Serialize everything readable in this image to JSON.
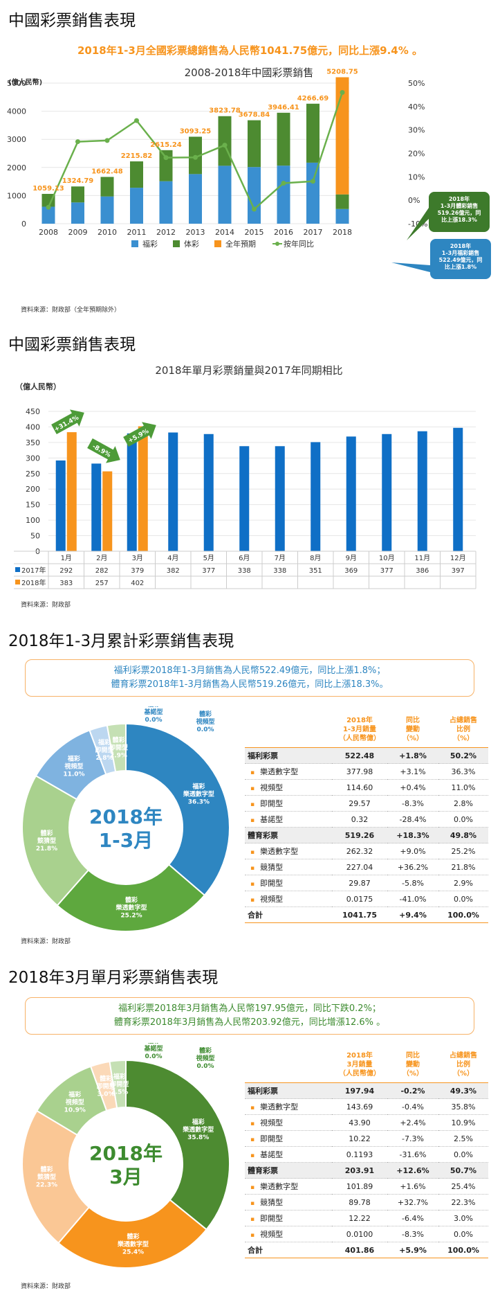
{
  "section1": {
    "title": "中國彩票銷售表現",
    "headline": "2018年1-3月全國彩票總銷售為人民幣1041.75億元，同比上漲9.4% 。",
    "source": "資料來源：財政部（全年預期除外）",
    "callout_green": [
      "2018年",
      "1-3月體彩銷售",
      "519.26億元，同",
      "比上漲18.3%"
    ],
    "callout_blue": [
      "2018年",
      "1-3月福彩銷售",
      "522.49億元，同",
      "比上漲1.8%"
    ]
  },
  "section2": {
    "title": "中國彩票銷售表現",
    "source": "資料來源：財政部",
    "arrow_labels": [
      "+31.4%",
      "-8.9%",
      "+5.9%"
    ]
  },
  "section3": {
    "title": "2018年1-3月累計彩票銷售表現",
    "summary": [
      "福利彩票2018年1-3月銷售為人民幣522.49億元，同比上漲1.8%；",
      "體育彩票2018年1-3月銷售為人民幣519.26億元，同比上漲18.3%。"
    ],
    "donut_center": [
      "2018年",
      "1-3月"
    ],
    "source": "資料來源：財政部",
    "table_headers": [
      "2018年\n1-3月銷量\n（人民幣億）",
      "同比\n變動\n（%）",
      "占總銷售\n比例\n（%）"
    ],
    "rows": [
      {
        "type": "cat",
        "label": "福利彩票",
        "v": [
          "522.48",
          "+1.8%",
          "50.2%"
        ]
      },
      {
        "type": "sub",
        "label": "樂透數字型",
        "v": [
          "377.98",
          "+3.1%",
          "36.3%"
        ]
      },
      {
        "type": "sub",
        "label": "視頻型",
        "v": [
          "114.60",
          "+0.4%",
          "11.0%"
        ]
      },
      {
        "type": "sub",
        "label": "即開型",
        "v": [
          "29.57",
          "-8.3%",
          "2.8%"
        ]
      },
      {
        "type": "sub",
        "label": "基諾型",
        "v": [
          "0.32",
          "-28.4%",
          "0.0%"
        ]
      },
      {
        "type": "cat",
        "label": "體育彩票",
        "v": [
          "519.26",
          "+18.3%",
          "49.8%"
        ]
      },
      {
        "type": "sub",
        "label": "樂透數字型",
        "v": [
          "262.32",
          "+9.0%",
          "25.2%"
        ]
      },
      {
        "type": "sub",
        "label": "競猜型",
        "v": [
          "227.04",
          "+36.2%",
          "21.8%"
        ]
      },
      {
        "type": "sub",
        "label": "即開型",
        "v": [
          "29.87",
          "-5.8%",
          "2.9%"
        ]
      },
      {
        "type": "sub",
        "label": "視頻型",
        "v": [
          "0.0175",
          "-41.0%",
          "0.0%"
        ]
      },
      {
        "type": "total",
        "label": "合計",
        "v": [
          "1041.75",
          "+9.4%",
          "100.0%"
        ]
      }
    ]
  },
  "section4": {
    "title": "2018年3月單月彩票銷售表現",
    "summary": [
      "福利彩票2018年3月銷售為人民幣197.95億元，同比下跌0.2%；",
      "體育彩票2018年3月銷售為人民幣203.92億元，同比增漲12.6% 。"
    ],
    "donut_center": [
      "2018年",
      "3月"
    ],
    "source": "資料來源：財政部",
    "table_headers": [
      "2018年\n3月銷量\n（人民幣億）",
      "同比\n變動\n（%）",
      "占總銷售\n比例\n（%）"
    ],
    "rows": [
      {
        "type": "cat",
        "label": "福利彩票",
        "v": [
          "197.94",
          "-0.2%",
          "49.3%"
        ]
      },
      {
        "type": "sub",
        "label": "樂透數字型",
        "v": [
          "143.69",
          "-0.4%",
          "35.8%"
        ]
      },
      {
        "type": "sub",
        "label": "視頻型",
        "v": [
          "43.90",
          "+2.4%",
          "10.9%"
        ]
      },
      {
        "type": "sub",
        "label": "即開型",
        "v": [
          "10.22",
          "-7.3%",
          "2.5%"
        ]
      },
      {
        "type": "sub",
        "label": "基諾型",
        "v": [
          "0.1193",
          "-31.6%",
          "0.0%"
        ]
      },
      {
        "type": "cat",
        "label": "體育彩票",
        "v": [
          "203.91",
          "+12.6%",
          "50.7%"
        ]
      },
      {
        "type": "sub",
        "label": "樂透數字型",
        "v": [
          "101.89",
          "+1.6%",
          "25.4%"
        ]
      },
      {
        "type": "sub",
        "label": "競猜型",
        "v": [
          "89.78",
          "+32.7%",
          "22.3%"
        ]
      },
      {
        "type": "sub",
        "label": "即開型",
        "v": [
          "12.22",
          "-6.4%",
          "3.0%"
        ]
      },
      {
        "type": "sub",
        "label": "視頻型",
        "v": [
          "0.0100",
          "-8.3%",
          "0.0%"
        ]
      },
      {
        "type": "total",
        "label": "合計",
        "v": [
          "401.86",
          "+5.9%",
          "100.0%"
        ]
      }
    ]
  },
  "chart_data": [
    {
      "type": "bar",
      "title": "2008-2018年中國彩票銷售",
      "ylabel": "(億人民幣)",
      "ylim": [
        0,
        5000
      ],
      "yticks": [
        "0",
        "1000",
        "2000",
        "3000",
        "4000",
        "5000"
      ],
      "y2lim": [
        -10,
        50
      ],
      "y2ticks": [
        "-10%",
        "0%",
        "10%",
        "20%",
        "30%",
        "40%",
        "50%"
      ],
      "categories": [
        "2008",
        "2009",
        "2010",
        "2011",
        "2012",
        "2013",
        "2014",
        "2015",
        "2016",
        "2017",
        "2018"
      ],
      "series": [
        {
          "name": "福彩",
          "color": "#3a8fd0",
          "values": [
            604,
            756,
            968,
            1278,
            1510,
            1765,
            2060,
            2015,
            2065,
            2170,
            522.49
          ]
        },
        {
          "name": "体彩",
          "color": "#4d8b31",
          "values": [
            456,
            568,
            695,
            938,
            1105,
            1328,
            1764,
            1664,
            1881,
            2097,
            519.26
          ]
        },
        {
          "name": "全年預期",
          "color": "#f7941d",
          "values": [
            null,
            null,
            null,
            null,
            null,
            null,
            null,
            null,
            null,
            null,
            4167
          ]
        },
        {
          "name": "按年同比",
          "color": "#6ab04c",
          "type": "line",
          "axis": "right",
          "values": [
            -3,
            25,
            25.5,
            34,
            18.2,
            18.3,
            23.5,
            -3.8,
            7.3,
            8.1,
            46
          ]
        }
      ],
      "totals": [
        "1059.13",
        "1324.79",
        "1662.48",
        "2215.82",
        "2615.24",
        "3093.25",
        "3823.78",
        "3678.84",
        "3946.41",
        "4266.69",
        "5208.75"
      ],
      "legend": "bottom"
    },
    {
      "type": "bar",
      "title": "2018年單月彩票銷量與2017年同期相比",
      "ylabel": "（億人民幣）",
      "ylim": [
        0,
        450
      ],
      "yticks": [
        "0",
        "50",
        "100",
        "150",
        "200",
        "250",
        "300",
        "350",
        "400",
        "450"
      ],
      "categories": [
        "1月",
        "2月",
        "3月",
        "4月",
        "5月",
        "6月",
        "7月",
        "8月",
        "9月",
        "10月",
        "11月",
        "12月"
      ],
      "series": [
        {
          "name": "2017年",
          "color": "#0f6fc6",
          "values": [
            292,
            282,
            379,
            382,
            377,
            338,
            338,
            351,
            369,
            377,
            386,
            397
          ],
          "labels": [
            "292",
            "282",
            "379",
            "382",
            "377",
            "338",
            "338",
            "351",
            "369",
            "377",
            "386",
            "397"
          ]
        },
        {
          "name": "2018年",
          "color": "#f7941d",
          "values": [
            383,
            257,
            402,
            null,
            null,
            null,
            null,
            null,
            null,
            null,
            null,
            null
          ],
          "labels": [
            "383",
            "257",
            "402",
            "",
            "",
            "",
            "",
            "",
            "",
            "",
            "",
            ""
          ]
        }
      ],
      "legend": "table-left"
    },
    {
      "type": "pie",
      "slices": [
        {
          "label": [
            "福彩",
            "樂透數字型",
            "36.3%"
          ],
          "value": 36.3,
          "color": "#2e86c1"
        },
        {
          "label": [
            "體彩",
            "樂透數字型",
            "25.2%"
          ],
          "value": 25.2,
          "color": "#5ea83e"
        },
        {
          "label": [
            "體彩",
            "競猜型",
            "21.8%"
          ],
          "value": 21.8,
          "color": "#a9d18e"
        },
        {
          "label": [
            "福彩",
            "視頻型",
            "11.0%"
          ],
          "value": 11.0,
          "color": "#7fb3e0"
        },
        {
          "label": [
            "福彩",
            "即開型",
            "2.8%"
          ],
          "value": 2.8,
          "color": "#bcd7f0"
        },
        {
          "label": [
            "體彩",
            "即開型",
            "2.9%"
          ],
          "value": 2.9,
          "color": "#c5e0b4"
        },
        {
          "label": [
            "福彩",
            "基諾型",
            "0.0%"
          ],
          "value": 0.0,
          "color": "#1a5f91"
        },
        {
          "label": [
            "體彩",
            "視頻型",
            "0.0%"
          ],
          "value": 0.0,
          "color": "#3d8b2f"
        }
      ]
    },
    {
      "type": "pie",
      "slices": [
        {
          "label": [
            "福彩",
            "樂透數字型",
            "35.8%"
          ],
          "value": 35.8,
          "color": "#4d8b31"
        },
        {
          "label": [
            "體彩",
            "樂透數字型",
            "25.4%"
          ],
          "value": 25.4,
          "color": "#f7941d"
        },
        {
          "label": [
            "體彩",
            "競猜型",
            "22.3%"
          ],
          "value": 22.3,
          "color": "#fac795"
        },
        {
          "label": [
            "福彩",
            "視頻型",
            "10.9%"
          ],
          "value": 10.9,
          "color": "#a9d18e"
        },
        {
          "label": [
            "體彩",
            "即開型",
            "3.0%"
          ],
          "value": 3.0,
          "color": "#fbd9b8"
        },
        {
          "label": [
            "福彩",
            "即開型",
            "2.5%"
          ],
          "value": 2.5,
          "color": "#c5e0b4"
        },
        {
          "label": [
            "福彩",
            "基諾型",
            "0.0%"
          ],
          "value": 0.0,
          "color": "#3d8b2f"
        },
        {
          "label": [
            "體彩",
            "視頻型",
            "0.0%"
          ],
          "value": 0.0,
          "color": "#3d8b2f"
        }
      ]
    }
  ]
}
